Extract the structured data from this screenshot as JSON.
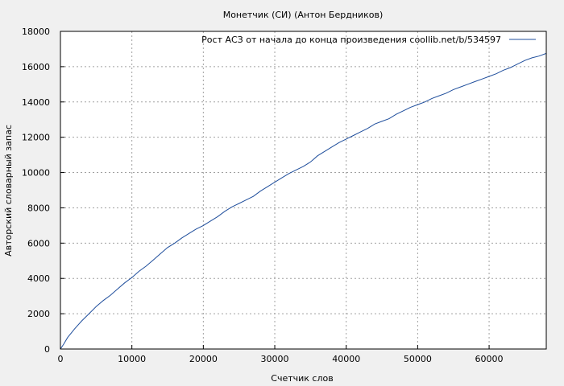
{
  "chart_data": {
    "type": "line",
    "title": "Монетчик (СИ) (Антон Бердников)",
    "xlabel": "Счетчик слов",
    "ylabel": "Авторский словарный запас",
    "xlim": [
      0,
      68000
    ],
    "ylim": [
      0,
      18000
    ],
    "x_ticks": [
      0,
      10000,
      20000,
      30000,
      40000,
      50000,
      60000
    ],
    "y_ticks": [
      0,
      2000,
      4000,
      6000,
      8000,
      10000,
      12000,
      14000,
      16000,
      18000
    ],
    "grid": true,
    "legend_position": "top-right",
    "colors": {
      "series": "#1f4e9c",
      "background": "#f0f0f0",
      "plot": "#ffffff",
      "grid": "#a0a0a0"
    },
    "series": [
      {
        "name": "Рост АСЗ от начала до конца произведения coollib.net/b/534597",
        "points": [
          [
            0,
            0
          ],
          [
            500,
            300
          ],
          [
            1000,
            650
          ],
          [
            2000,
            1150
          ],
          [
            3000,
            1600
          ],
          [
            4000,
            2000
          ],
          [
            5000,
            2400
          ],
          [
            6000,
            2750
          ],
          [
            7000,
            3050
          ],
          [
            8000,
            3400
          ],
          [
            9000,
            3750
          ],
          [
            10000,
            4050
          ],
          [
            11000,
            4400
          ],
          [
            12000,
            4700
          ],
          [
            13000,
            5050
          ],
          [
            14000,
            5400
          ],
          [
            15000,
            5750
          ],
          [
            16000,
            6000
          ],
          [
            17000,
            6300
          ],
          [
            18000,
            6550
          ],
          [
            19000,
            6800
          ],
          [
            20000,
            7000
          ],
          [
            21000,
            7250
          ],
          [
            22000,
            7500
          ],
          [
            23000,
            7800
          ],
          [
            24000,
            8050
          ],
          [
            25000,
            8250
          ],
          [
            26000,
            8450
          ],
          [
            27000,
            8650
          ],
          [
            28000,
            8950
          ],
          [
            29000,
            9200
          ],
          [
            30000,
            9450
          ],
          [
            31000,
            9700
          ],
          [
            32000,
            9950
          ],
          [
            33000,
            10150
          ],
          [
            34000,
            10350
          ],
          [
            35000,
            10600
          ],
          [
            36000,
            10950
          ],
          [
            37000,
            11200
          ],
          [
            38000,
            11450
          ],
          [
            39000,
            11700
          ],
          [
            40000,
            11900
          ],
          [
            41000,
            12100
          ],
          [
            42000,
            12300
          ],
          [
            43000,
            12500
          ],
          [
            44000,
            12750
          ],
          [
            45000,
            12900
          ],
          [
            46000,
            13050
          ],
          [
            47000,
            13300
          ],
          [
            48000,
            13500
          ],
          [
            49000,
            13700
          ],
          [
            50000,
            13850
          ],
          [
            51000,
            14000
          ],
          [
            52000,
            14200
          ],
          [
            53000,
            14350
          ],
          [
            54000,
            14500
          ],
          [
            55000,
            14700
          ],
          [
            56000,
            14850
          ],
          [
            57000,
            15000
          ],
          [
            58000,
            15150
          ],
          [
            59000,
            15300
          ],
          [
            60000,
            15450
          ],
          [
            61000,
            15600
          ],
          [
            62000,
            15800
          ],
          [
            63000,
            15950
          ],
          [
            64000,
            16150
          ],
          [
            65000,
            16350
          ],
          [
            66000,
            16500
          ],
          [
            67000,
            16600
          ],
          [
            68000,
            16750
          ]
        ]
      }
    ]
  }
}
